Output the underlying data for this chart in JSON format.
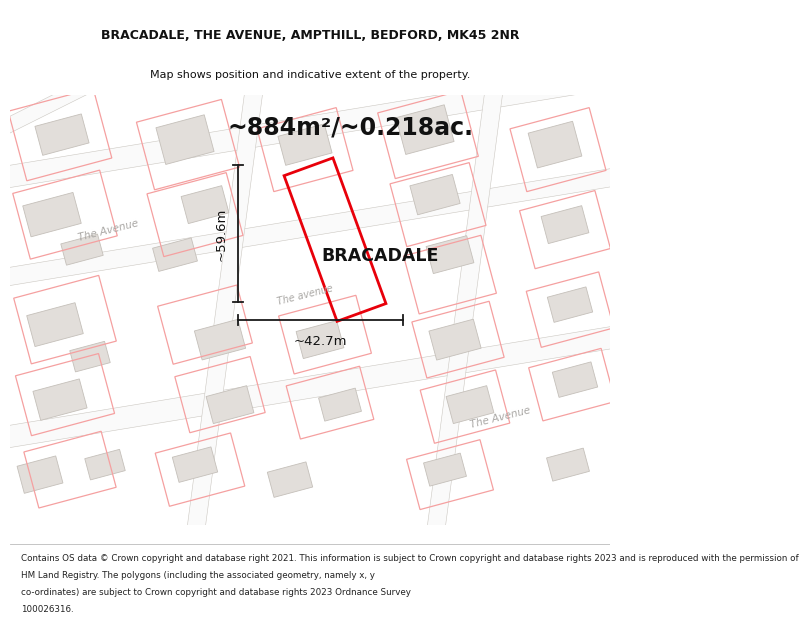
{
  "title_line1": "BRACADALE, THE AVENUE, AMPTHILL, BEDFORD, MK45 2NR",
  "title_line2": "Map shows position and indicative extent of the property.",
  "area_text": "~884m²/~0.218ac.",
  "property_label": "BRACADALE",
  "dim_height": "~59.6m",
  "dim_width": "~42.7m",
  "footer_lines": [
    "Contains OS data © Crown copyright and database right 2021. This information is subject to Crown copyright and database rights 2023 and is reproduced with the permission of",
    "HM Land Registry. The polygons (including the associated geometry, namely x, y co-ordinates) are subject to Crown copyright and database rights 2023 Ordnance Survey",
    "100026316."
  ],
  "map_bg": "#f7f6f4",
  "road_color": "#ffffff",
  "road_edge": "#d0ccc6",
  "building_fill": "#e2deda",
  "building_edge": "#c5c0ba",
  "plot_red": "#e8000a",
  "plot_pink": "#f5a0a0",
  "dim_color": "#1a1a1a",
  "text_color": "#111111",
  "street_color": "#aaa8a5",
  "footer_color": "#222222",
  "header_bg": "#ffffff",
  "map_border": "#cccccc"
}
